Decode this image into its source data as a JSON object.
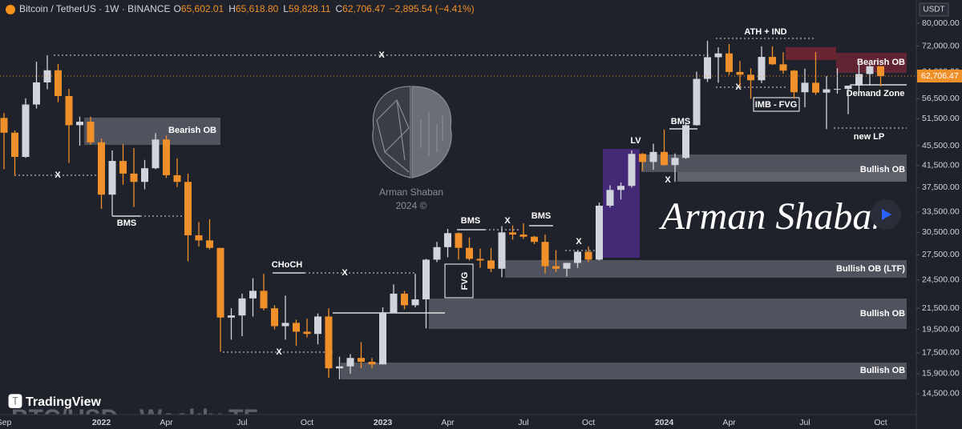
{
  "header": {
    "symbol": "Bitcoin / TetherUS · 1W · BINANCE",
    "fields": [
      {
        "key": "O",
        "value": "65,602.01"
      },
      {
        "key": "H",
        "value": "65,618.80"
      },
      {
        "key": "L",
        "value": "59,828.11"
      },
      {
        "key": "C",
        "value": "62,706.47"
      }
    ],
    "change": "−2,895.54 (−4.41%)"
  },
  "currency": "USDT",
  "last_price": {
    "value": 62706.47,
    "label": "62,706.47"
  },
  "annotations": {
    "bearish_ob_left": "Bearish OB",
    "bms_1": "BMS",
    "x_1": "X",
    "x_2": "X",
    "choch": "CHoCH",
    "x_3": "X",
    "x_4": "X",
    "fvg": "FVG",
    "bms_2": "BMS",
    "x_5": "X",
    "bms_3": "BMS",
    "x_6": "X",
    "lv": "LV",
    "bms_4": "BMS",
    "x_7": "X",
    "ath": "ATH + IND",
    "x_8": "X",
    "imb": "IMB - FVG",
    "bearish_ob_right": "Bearish OB",
    "demand": "Demand Zone",
    "new_lp": "new LP",
    "bullish_ob_1": "Bullish OB",
    "bullish_ob_ltf": "Bullish OB (LTF)",
    "bullish_ob_2": "Bullish OB",
    "bullish_ob_3": "Bullish OB"
  },
  "watermark": {
    "name": "Arman Shaban",
    "year": "2024 ©",
    "signature": "Arman Shaban",
    "platform": "TradingView",
    "caption": "BTC/USD - Weekly TF"
  },
  "chart_data": {
    "type": "candlestick",
    "log_scale": true,
    "grid": false,
    "up_color": "#d1d4dc",
    "down_color": "#f0902a",
    "ylim": [
      13170,
      89040
    ],
    "yticks": [
      {
        "value": 14500,
        "label": "14,500.00"
      },
      {
        "value": 15900,
        "label": "15,900.00"
      },
      {
        "value": 17500,
        "label": "17,500.00"
      },
      {
        "value": 19500,
        "label": "19,500.00"
      },
      {
        "value": 21500,
        "label": "21,500.00"
      },
      {
        "value": 24500,
        "label": "24,500.00"
      },
      {
        "value": 27500,
        "label": "27,500.00"
      },
      {
        "value": 30500,
        "label": "30,500.00"
      },
      {
        "value": 33500,
        "label": "33,500.00"
      },
      {
        "value": 37500,
        "label": "37,500.00"
      },
      {
        "value": 41500,
        "label": "41,500.00"
      },
      {
        "value": 45500,
        "label": "45,500.00"
      },
      {
        "value": 51500,
        "label": "51,500.00"
      },
      {
        "value": 56500,
        "label": "56,500.00"
      },
      {
        "value": 64000,
        "label": "64,000.00"
      },
      {
        "value": 72000,
        "label": "72,000.00"
      },
      {
        "value": 80000,
        "label": "80,000.00"
      }
    ],
    "categories": [
      "Sep",
      null,
      null,
      null,
      null,
      null,
      null,
      null,
      null,
      "2022",
      null,
      null,
      null,
      null,
      null,
      "Apr",
      null,
      null,
      null,
      null,
      null,
      null,
      "Jul",
      null,
      null,
      null,
      null,
      null,
      "Oct",
      null,
      null,
      null,
      null,
      null,
      null,
      "2023",
      null,
      null,
      null,
      null,
      null,
      "Apr",
      null,
      null,
      null,
      null,
      null,
      null,
      "Jul",
      null,
      null,
      null,
      null,
      null,
      "Oct",
      null,
      null,
      null,
      null,
      null,
      null,
      "2024",
      null,
      null,
      null,
      null,
      null,
      "Apr",
      null,
      null,
      null,
      null,
      null,
      null,
      "Jul",
      null,
      null,
      null,
      null,
      null,
      null,
      "Oct"
    ],
    "ohlc": [
      [
        51700,
        52900,
        40800,
        48300
      ],
      [
        48300,
        48800,
        39600,
        43200
      ],
      [
        43200,
        56600,
        43000,
        55000
      ],
      [
        55000,
        67000,
        54000,
        60900
      ],
      [
        60900,
        69000,
        59000,
        64400
      ],
      [
        64400,
        66300,
        55600,
        57200
      ],
      [
        57200,
        59100,
        42000,
        50000
      ],
      [
        50000,
        52000,
        45500,
        50800
      ],
      [
        50800,
        52000,
        45700,
        46200
      ],
      [
        46200,
        47000,
        34000,
        36300
      ],
      [
        36300,
        44500,
        32900,
        42400
      ],
      [
        42400,
        45800,
        38000,
        40000
      ],
      [
        40000,
        45000,
        34300,
        38500
      ],
      [
        38500,
        42600,
        37200,
        41000
      ],
      [
        41000,
        48200,
        40800,
        46800
      ],
      [
        46800,
        47700,
        39200,
        39700
      ],
      [
        39700,
        42900,
        37600,
        38500
      ],
      [
        38500,
        40000,
        26700,
        30100
      ],
      [
        30100,
        32000,
        28600,
        29400
      ],
      [
        29400,
        32400,
        28200,
        28400
      ],
      [
        28400,
        28400,
        17600,
        20600
      ],
      [
        20600,
        21500,
        18600,
        20800
      ],
      [
        20800,
        23000,
        18900,
        22500
      ],
      [
        22500,
        24700,
        20700,
        23300
      ],
      [
        23300,
        25200,
        21300,
        21500
      ],
      [
        21500,
        21800,
        19500,
        19800
      ],
      [
        19800,
        22800,
        18600,
        20100
      ],
      [
        20100,
        20400,
        18100,
        19300
      ],
      [
        19300,
        20500,
        18800,
        19100
      ],
      [
        19100,
        21000,
        18200,
        20700
      ],
      [
        20700,
        21500,
        15600,
        16300
      ],
      [
        16300,
        17200,
        15500,
        16450
      ],
      [
        16450,
        17400,
        15900,
        17100
      ],
      [
        17100,
        18400,
        16300,
        16800
      ],
      [
        16800,
        17100,
        16300,
        16600
      ],
      [
        16600,
        21600,
        16600,
        21100
      ],
      [
        21100,
        24000,
        21000,
        23000
      ],
      [
        23000,
        23300,
        21400,
        21800
      ],
      [
        21800,
        25200,
        21600,
        22400
      ],
      [
        22400,
        27000,
        19600,
        26900
      ],
      [
        26900,
        29200,
        26600,
        28500
      ],
      [
        28500,
        31000,
        27200,
        30400
      ],
      [
        30400,
        30500,
        26900,
        28400
      ],
      [
        28400,
        29800,
        26800,
        27000
      ],
      [
        27000,
        28300,
        25900,
        26800
      ],
      [
        26800,
        28400,
        25400,
        25800
      ],
      [
        25800,
        31400,
        24800,
        30500
      ],
      [
        30500,
        31500,
        29500,
        30200
      ],
      [
        30200,
        31800,
        29600,
        29900
      ],
      [
        29900,
        30000,
        28900,
        29200
      ],
      [
        29200,
        30200,
        25200,
        26100
      ],
      [
        26100,
        28100,
        25400,
        25800
      ],
      [
        25800,
        26500,
        24900,
        26500
      ],
      [
        26500,
        28000,
        25900,
        27900
      ],
      [
        27900,
        28600,
        26600,
        26900
      ],
      [
        26900,
        35000,
        26800,
        34500
      ],
      [
        34500,
        37900,
        34200,
        37100
      ],
      [
        37100,
        38400,
        35500,
        37800
      ],
      [
        37800,
        44500,
        37500,
        43800
      ],
      [
        43800,
        44000,
        40500,
        42200
      ],
      [
        42200,
        45900,
        40700,
        44200
      ],
      [
        44200,
        49000,
        41500,
        41600
      ],
      [
        41600,
        43900,
        38500,
        43000
      ],
      [
        43000,
        50400,
        42800,
        50000
      ],
      [
        50000,
        64000,
        49900,
        61900
      ],
      [
        61900,
        73800,
        61000,
        68400
      ],
      [
        68400,
        71600,
        60800,
        69600
      ],
      [
        69600,
        72700,
        63000,
        63900
      ],
      [
        63900,
        67200,
        59600,
        63100
      ],
      [
        63100,
        65000,
        56500,
        61500
      ],
      [
        61500,
        71900,
        60700,
        68500
      ],
      [
        68500,
        71900,
        66000,
        66200
      ],
      [
        66200,
        70000,
        63400,
        64300
      ],
      [
        64300,
        64500,
        56500,
        58200
      ],
      [
        58200,
        64900,
        54300,
        60800
      ],
      [
        60800,
        70000,
        57500,
        58100
      ],
      [
        58100,
        62700,
        49100,
        59000
      ],
      [
        59000,
        65000,
        57800,
        59100
      ],
      [
        59100,
        59800,
        52600,
        60000
      ],
      [
        60000,
        66500,
        57600,
        63300
      ],
      [
        63300,
        66000,
        60000,
        65602.01
      ],
      [
        65602.01,
        65618.8,
        59828.11,
        62706.47
      ]
    ]
  }
}
